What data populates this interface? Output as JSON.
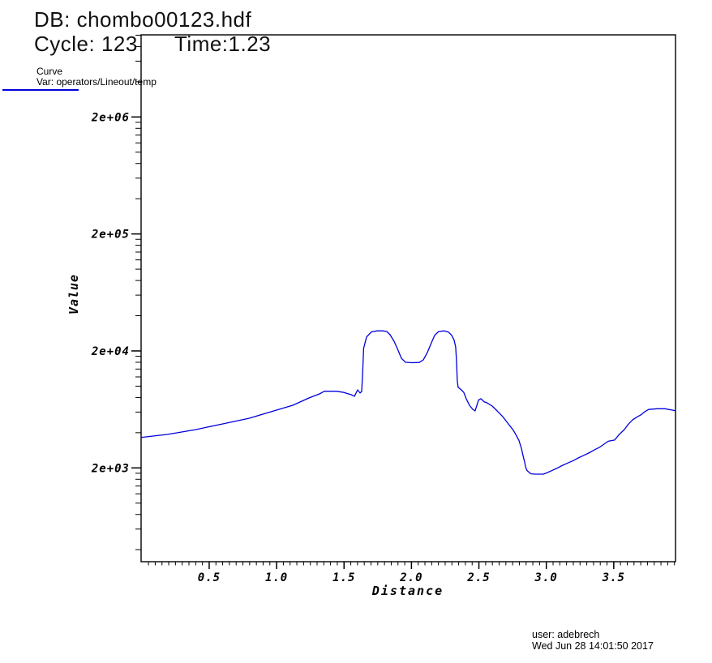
{
  "header": {
    "db_line": "DB: chombo00123.hdf",
    "cycle_label": "Cycle: 123",
    "time_label": "Time:1.23"
  },
  "legend": {
    "title": "Curve",
    "var_label": "Var: operators/Lineout/temp",
    "swatch_color": "#0000dd"
  },
  "footer": {
    "user_line": "user: adebrech",
    "date_line": "Wed Jun 28 14:01:50 2017"
  },
  "chart_data": {
    "type": "line",
    "title": "",
    "xlabel": "Distance",
    "ylabel": "Value",
    "grid": false,
    "legend_position": "top-left",
    "x_axis": {
      "min": 0,
      "max": 3.96,
      "major_ticks": [
        0.5,
        1.0,
        1.5,
        2.0,
        2.5,
        3.0,
        3.5
      ],
      "major_tick_labels": [
        "0.5",
        "1.0",
        "1.5",
        "2.0",
        "2.5",
        "3.0",
        "3.5"
      ],
      "minor_tick_step": 0.05
    },
    "y_axis": {
      "scale": "log",
      "min": 316,
      "max": 10070000,
      "major_ticks": [
        2000,
        20000,
        200000,
        2000000
      ],
      "major_tick_labels": [
        "2e+03",
        "2e+04",
        "2e+05",
        "2e+06"
      ]
    },
    "series": [
      {
        "name": "operators/Lineout/temp",
        "color": "#0000dd",
        "points": [
          [
            0.0,
            3650
          ],
          [
            0.194,
            3870
          ],
          [
            0.398,
            4250
          ],
          [
            0.597,
            4750
          ],
          [
            0.795,
            5310
          ],
          [
            0.999,
            6240
          ],
          [
            1.12,
            6860
          ],
          [
            1.24,
            7920
          ],
          [
            1.318,
            8580
          ],
          [
            1.354,
            9040
          ],
          [
            1.444,
            9040
          ],
          [
            1.499,
            8830
          ],
          [
            1.553,
            8450
          ],
          [
            1.577,
            8200
          ],
          [
            1.601,
            9300
          ],
          [
            1.619,
            8740
          ],
          [
            1.631,
            9000
          ],
          [
            1.638,
            13000
          ],
          [
            1.645,
            21000
          ],
          [
            1.667,
            26300
          ],
          [
            1.703,
            29100
          ],
          [
            1.745,
            29700
          ],
          [
            1.787,
            29700
          ],
          [
            1.817,
            29300
          ],
          [
            1.841,
            27500
          ],
          [
            1.871,
            24200
          ],
          [
            1.895,
            21000
          ],
          [
            1.926,
            17250
          ],
          [
            1.956,
            16000
          ],
          [
            2.004,
            15870
          ],
          [
            2.058,
            15930
          ],
          [
            2.088,
            16760
          ],
          [
            2.118,
            19400
          ],
          [
            2.148,
            23500
          ],
          [
            2.172,
            27200
          ],
          [
            2.202,
            29300
          ],
          [
            2.244,
            29700
          ],
          [
            2.274,
            29000
          ],
          [
            2.298,
            27200
          ],
          [
            2.316,
            24700
          ],
          [
            2.328,
            21600
          ],
          [
            2.334,
            16600
          ],
          [
            2.34,
            11100
          ],
          [
            2.346,
            9800
          ],
          [
            2.37,
            9300
          ],
          [
            2.388,
            8850
          ],
          [
            2.406,
            7810
          ],
          [
            2.43,
            6860
          ],
          [
            2.454,
            6340
          ],
          [
            2.472,
            6150
          ],
          [
            2.497,
            7600
          ],
          [
            2.515,
            7810
          ],
          [
            2.539,
            7350
          ],
          [
            2.557,
            7230
          ],
          [
            2.599,
            6760
          ],
          [
            2.635,
            6150
          ],
          [
            2.677,
            5480
          ],
          [
            2.719,
            4750
          ],
          [
            2.755,
            4200
          ],
          [
            2.779,
            3760
          ],
          [
            2.797,
            3440
          ],
          [
            2.815,
            2950
          ],
          [
            2.827,
            2560
          ],
          [
            2.839,
            2250
          ],
          [
            2.848,
            2010
          ],
          [
            2.857,
            1900
          ],
          [
            2.875,
            1820
          ],
          [
            2.887,
            1780
          ],
          [
            2.918,
            1770
          ],
          [
            2.978,
            1770
          ],
          [
            3.0,
            1810
          ],
          [
            3.038,
            1890
          ],
          [
            3.08,
            1990
          ],
          [
            3.116,
            2090
          ],
          [
            3.158,
            2200
          ],
          [
            3.2,
            2310
          ],
          [
            3.236,
            2430
          ],
          [
            3.278,
            2560
          ],
          [
            3.32,
            2700
          ],
          [
            3.356,
            2850
          ],
          [
            3.392,
            2990
          ],
          [
            3.459,
            3380
          ],
          [
            3.507,
            3460
          ],
          [
            3.537,
            3820
          ],
          [
            3.579,
            4260
          ],
          [
            3.609,
            4740
          ],
          [
            3.639,
            5140
          ],
          [
            3.669,
            5420
          ],
          [
            3.699,
            5660
          ],
          [
            3.729,
            6030
          ],
          [
            3.759,
            6320
          ],
          [
            3.819,
            6410
          ],
          [
            3.879,
            6410
          ],
          [
            3.94,
            6230
          ],
          [
            3.96,
            6150
          ]
        ]
      }
    ]
  }
}
